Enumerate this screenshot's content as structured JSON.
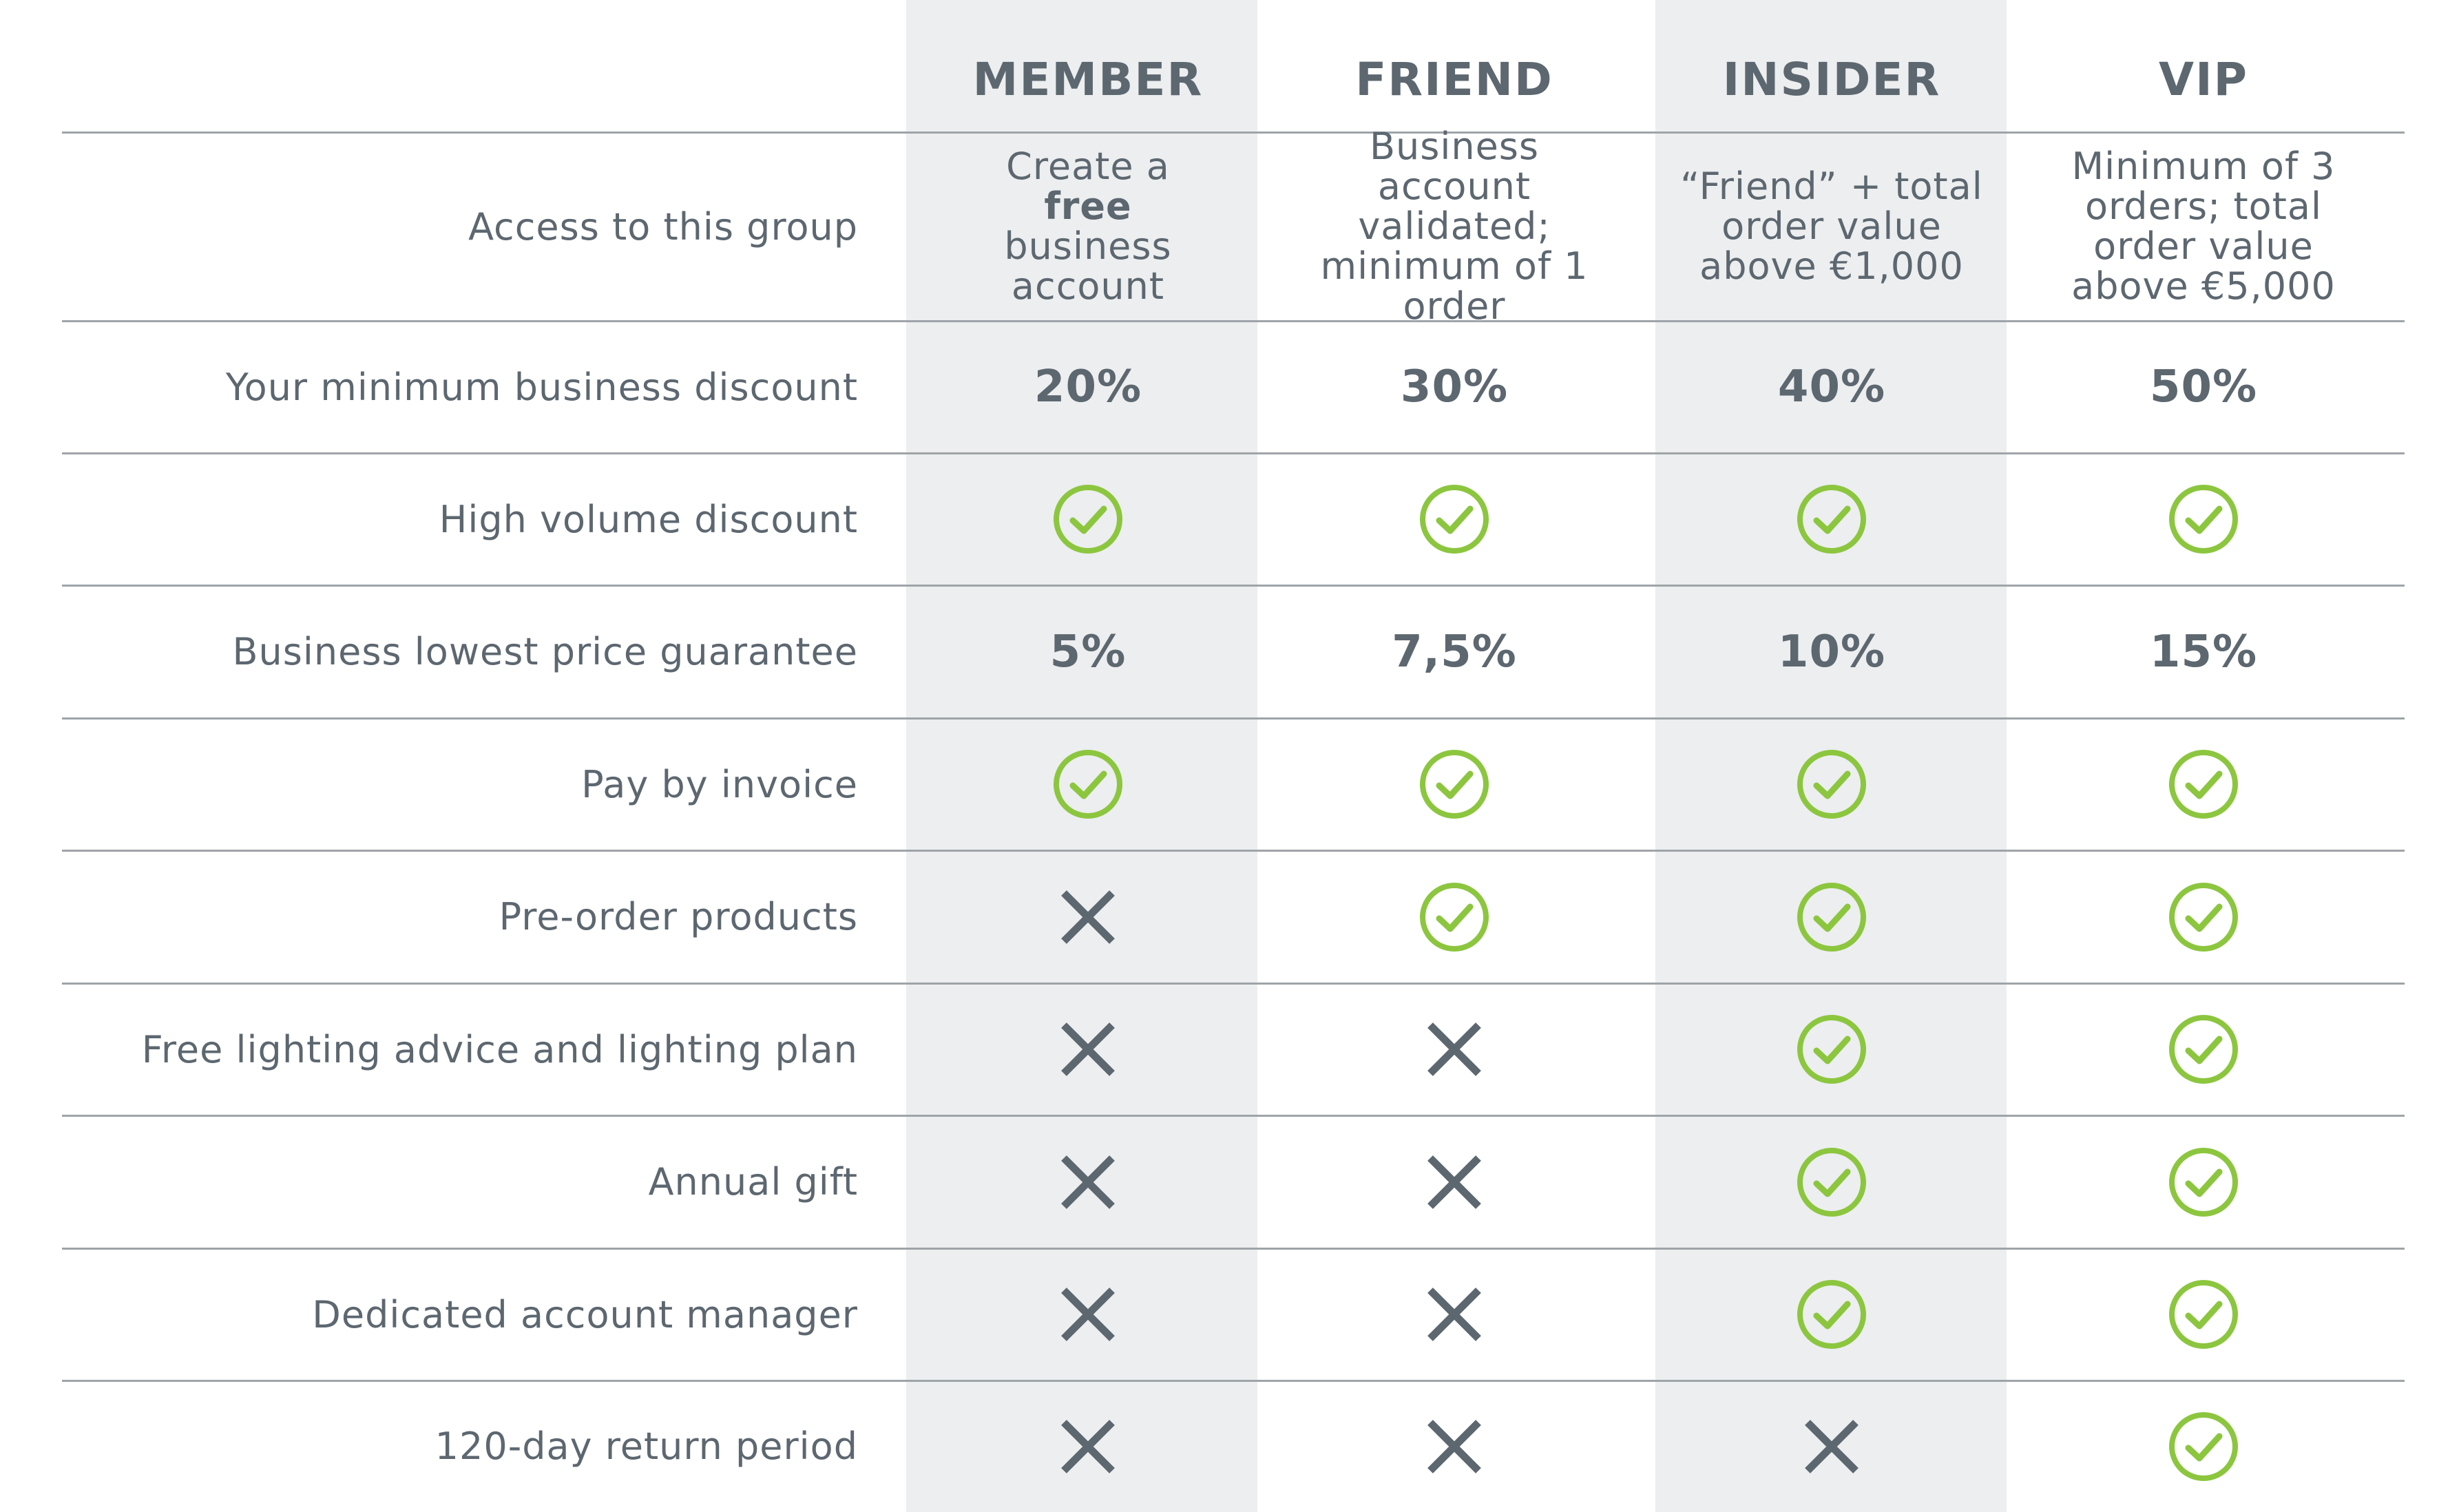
{
  "columns": [
    {
      "label": "MEMBER"
    },
    {
      "label": "FRIEND"
    },
    {
      "label": "INSIDER"
    },
    {
      "label": "VIP"
    }
  ],
  "access_row": {
    "label": "Access to this group",
    "cells": [
      {
        "before": "Create a ",
        "bold": "free",
        "after": " business account"
      },
      {
        "text": "Business account validated; minimum of 1 order"
      },
      {
        "text": "“Friend” + total order value above €1,000"
      },
      {
        "text": "Minimum of 3 orders; total order value above €5,000"
      }
    ]
  },
  "rows": [
    {
      "label": "Your minimum business discount",
      "cells": [
        {
          "value": "20%"
        },
        {
          "value": "30%"
        },
        {
          "value": "40%"
        },
        {
          "value": "50%"
        }
      ]
    },
    {
      "label": "High volume discount",
      "cells": [
        {
          "icon": "check-icon"
        },
        {
          "icon": "check-icon"
        },
        {
          "icon": "check-icon"
        },
        {
          "icon": "check-icon"
        }
      ]
    },
    {
      "label": "Business lowest price guarantee",
      "cells": [
        {
          "value": "5%"
        },
        {
          "value": "7,5%"
        },
        {
          "value": "10%"
        },
        {
          "value": "15%"
        }
      ]
    },
    {
      "label": "Pay by invoice",
      "cells": [
        {
          "icon": "check-icon"
        },
        {
          "icon": "check-icon"
        },
        {
          "icon": "check-icon"
        },
        {
          "icon": "check-icon"
        }
      ]
    },
    {
      "label": "Pre-order products",
      "cells": [
        {
          "icon": "cross-icon"
        },
        {
          "icon": "check-icon"
        },
        {
          "icon": "check-icon"
        },
        {
          "icon": "check-icon"
        }
      ]
    },
    {
      "label": "Free lighting advice and lighting plan",
      "cells": [
        {
          "icon": "cross-icon"
        },
        {
          "icon": "cross-icon"
        },
        {
          "icon": "check-icon"
        },
        {
          "icon": "check-icon"
        }
      ]
    },
    {
      "label": "Annual gift",
      "cells": [
        {
          "icon": "cross-icon"
        },
        {
          "icon": "cross-icon"
        },
        {
          "icon": "check-icon"
        },
        {
          "icon": "check-icon"
        }
      ]
    },
    {
      "label": "Dedicated account manager",
      "cells": [
        {
          "icon": "cross-icon"
        },
        {
          "icon": "cross-icon"
        },
        {
          "icon": "check-icon"
        },
        {
          "icon": "check-icon"
        }
      ]
    },
    {
      "label": "120-day return period",
      "cells": [
        {
          "icon": "cross-icon"
        },
        {
          "icon": "cross-icon"
        },
        {
          "icon": "cross-icon"
        },
        {
          "icon": "check-icon"
        }
      ]
    }
  ],
  "colors": {
    "text": "#5d6770",
    "check": "#8cc63f",
    "cross": "#5d6770",
    "shade": "#eceeef",
    "rule": "#9ea4a8"
  }
}
